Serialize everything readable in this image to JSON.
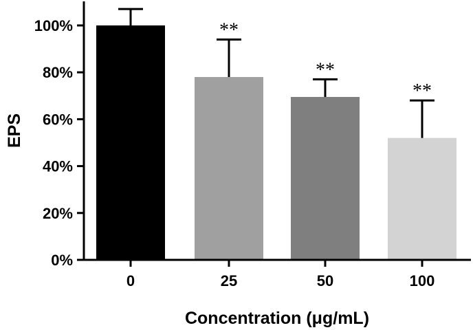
{
  "chart_data": {
    "type": "bar",
    "title": "",
    "xlabel": "Concentration (μg/mL)",
    "ylabel": "EPS",
    "categories": [
      "0",
      "25",
      "50",
      "100"
    ],
    "values": [
      100,
      78,
      69.5,
      52
    ],
    "error_upper": [
      107,
      94,
      77,
      68
    ],
    "significance": [
      "",
      "**",
      "**",
      "**"
    ],
    "bar_colors": [
      "#000000",
      "#a0a0a0",
      "#7f7f7f",
      "#d3d3d3"
    ],
    "ylim": [
      0,
      100
    ],
    "yticks": [
      0,
      20,
      40,
      60,
      80,
      100
    ],
    "ytick_labels": [
      "0%",
      "20%",
      "40%",
      "60%",
      "80%",
      "100%"
    ],
    "grid": false,
    "legend": "none"
  }
}
